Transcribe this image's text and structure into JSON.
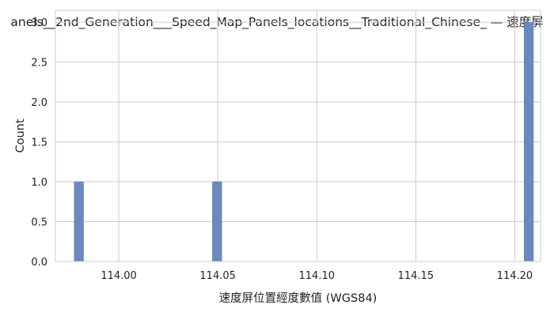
{
  "chart_data": {
    "type": "bar",
    "title": "anels__2nd_Generation___Speed_Map_Panels_locations__Traditional_Chinese_ — 速度屏",
    "xlabel": "速度屏位置經度數值 (WGS84)",
    "ylabel": "Count",
    "xlim": [
      113.968,
      114.213
    ],
    "ylim": [
      0,
      3.15
    ],
    "x_ticks": [
      "114.00",
      "114.05",
      "114.10",
      "114.15",
      "114.20"
    ],
    "x_tick_values": [
      114.0,
      114.05,
      114.1,
      114.15,
      114.2
    ],
    "y_ticks": [
      "0.0",
      "0.5",
      "1.0",
      "1.5",
      "2.0",
      "2.5",
      "3.0"
    ],
    "y_tick_values": [
      0,
      0.5,
      1.0,
      1.5,
      2.0,
      2.5,
      3.0
    ],
    "bins": [
      {
        "x0": 113.9775,
        "x1": 113.9822,
        "count": 1
      },
      {
        "x0": 114.0473,
        "x1": 114.052,
        "count": 1
      },
      {
        "x0": 114.2047,
        "x1": 114.2094,
        "count": 3
      }
    ],
    "grid": true,
    "colors": {
      "bar": "#6a89c0",
      "grid": "#cccccc"
    }
  }
}
